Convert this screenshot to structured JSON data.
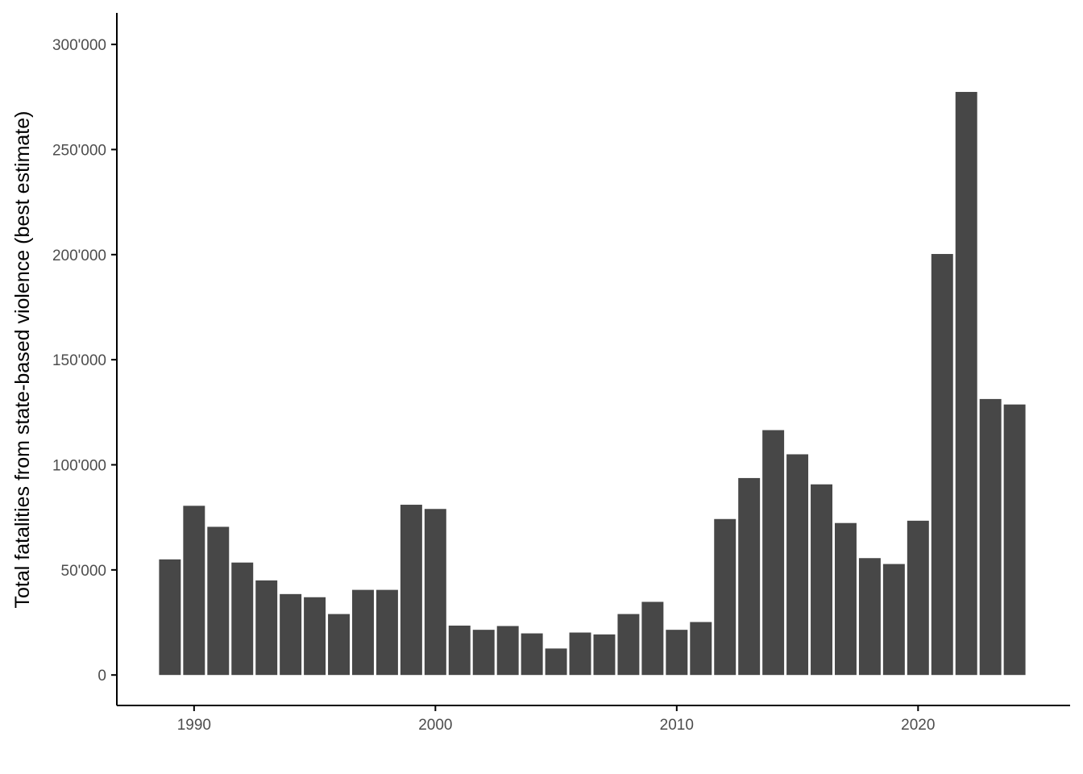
{
  "chart_data": {
    "type": "bar",
    "title": "",
    "xlabel": "",
    "ylabel": "Total fatalities from state-based violence (best estimate)",
    "x": [
      1989,
      1990,
      1991,
      1992,
      1993,
      1994,
      1995,
      1996,
      1997,
      1998,
      1999,
      2000,
      2001,
      2002,
      2003,
      2004,
      2005,
      2006,
      2007,
      2008,
      2009,
      2010,
      2011,
      2012,
      2013,
      2014,
      2015,
      2016,
      2017,
      2018,
      2019,
      2020,
      2021,
      2022,
      2023,
      2024
    ],
    "values": [
      55000,
      80500,
      70500,
      53500,
      45000,
      38500,
      37000,
      29000,
      40500,
      40500,
      81000,
      79000,
      23500,
      21500,
      23300,
      19800,
      12600,
      20200,
      19300,
      29000,
      34800,
      21500,
      25200,
      74200,
      93700,
      116500,
      105000,
      90700,
      72300,
      55600,
      52800,
      73400,
      200300,
      277400,
      131300,
      128700
    ],
    "xlim": [
      1986.8,
      2026.3
    ],
    "ylim": [
      -14500,
      315000
    ],
    "xticks": [
      1990,
      2000,
      2010,
      2020
    ],
    "xtick_labels": [
      "1990",
      "2000",
      "2010",
      "2020"
    ],
    "yticks": [
      0,
      50000,
      100000,
      150000,
      200000,
      250000,
      300000
    ],
    "ytick_labels": [
      "0",
      "50'000",
      "100'000",
      "150'000",
      "200'000",
      "250'000",
      "300'000"
    ],
    "bar_color": "#474747",
    "axis_color": "#000000",
    "grid": false,
    "legend": "none"
  }
}
